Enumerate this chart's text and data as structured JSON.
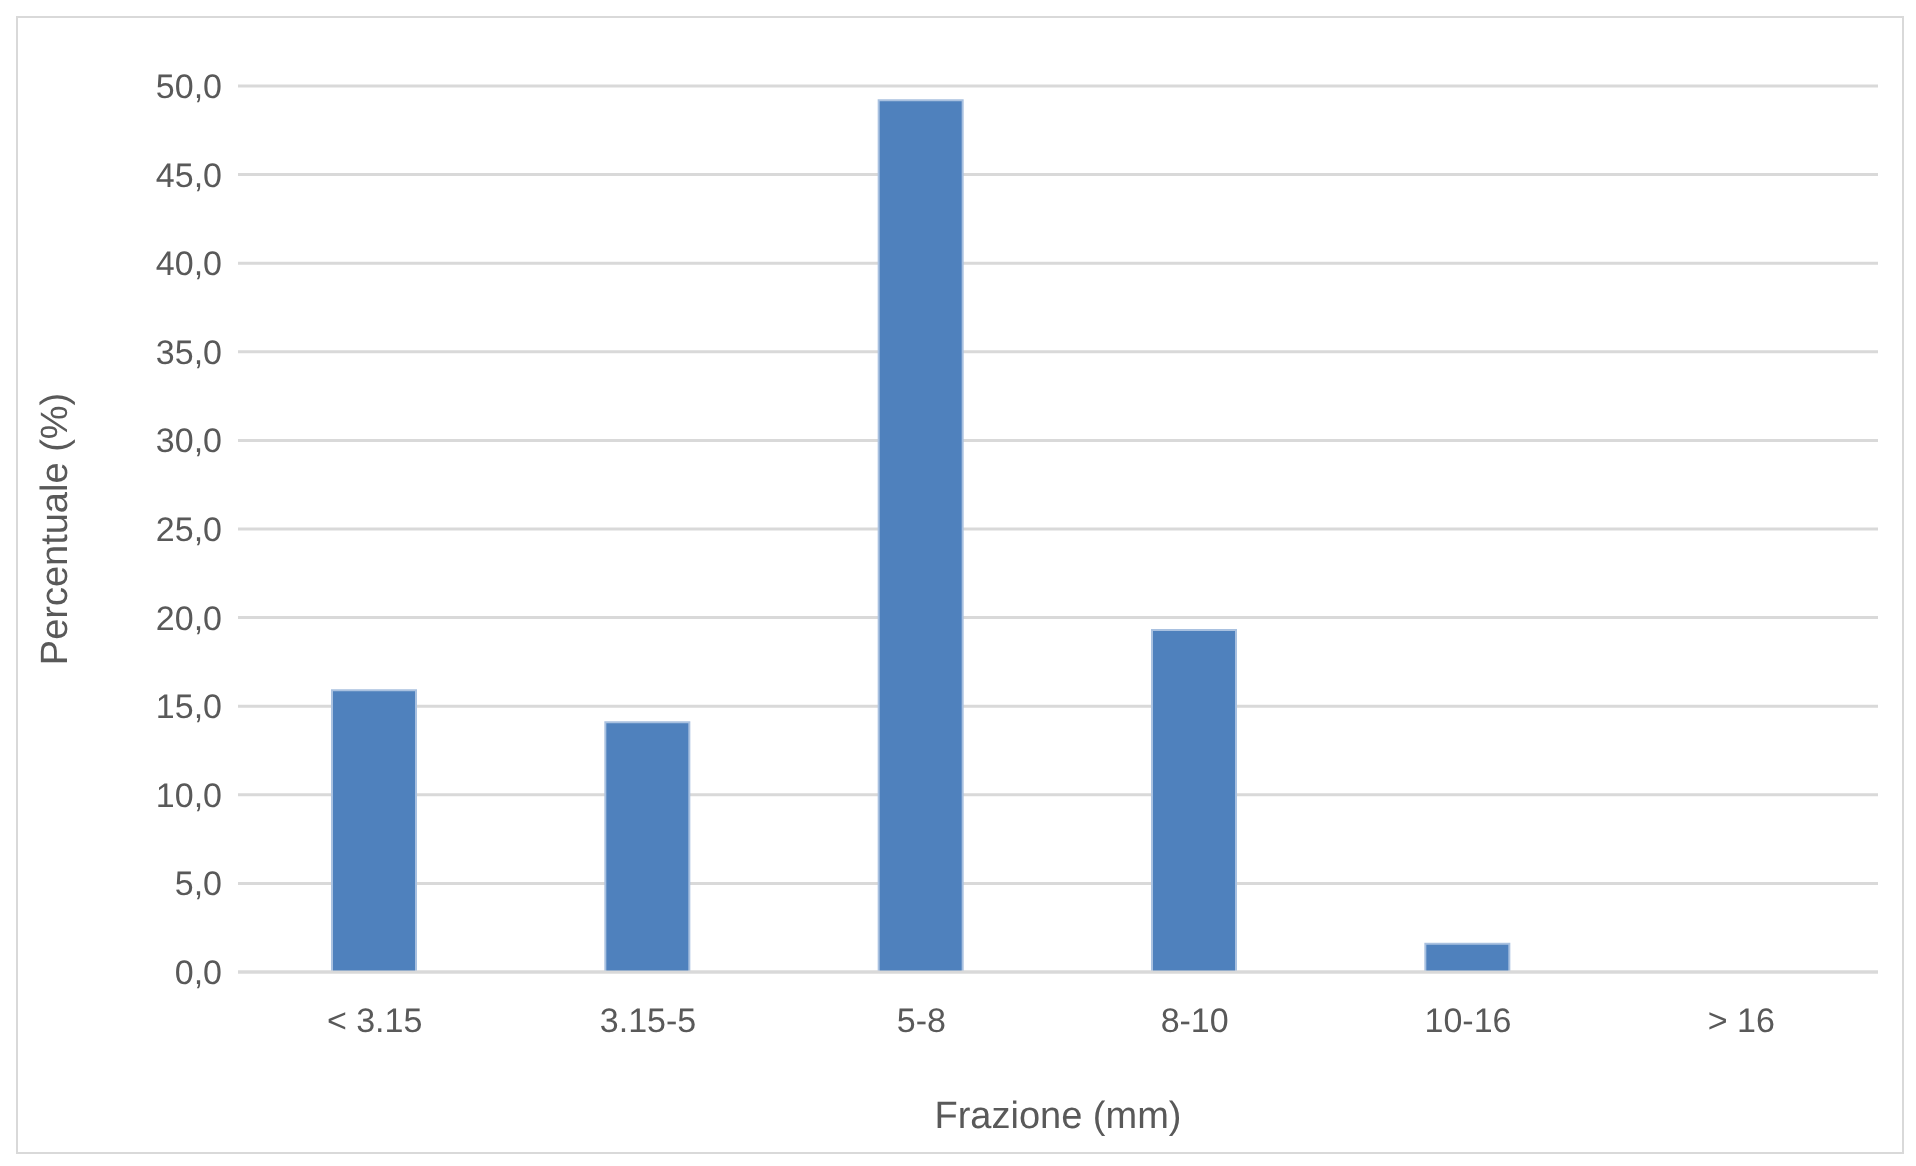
{
  "chart_data": {
    "type": "bar",
    "xlabel": "Frazione (mm)",
    "ylabel": "Percentuale (%)",
    "categories": [
      "< 3.15",
      "3.15-5",
      "5-8",
      "8-10",
      "10-16",
      "> 16"
    ],
    "values": [
      15.9,
      14.1,
      49.2,
      19.3,
      1.6,
      0
    ],
    "color": "#4f81bd",
    "ylim": [
      0,
      50
    ],
    "yticks": [
      {
        "value": 0,
        "label": "0,0"
      },
      {
        "value": 5,
        "label": "5,0"
      },
      {
        "value": 10,
        "label": "10,0"
      },
      {
        "value": 15,
        "label": "15,0"
      },
      {
        "value": 20,
        "label": "20,0"
      },
      {
        "value": 25,
        "label": "25,0"
      },
      {
        "value": 30,
        "label": "30,0"
      },
      {
        "value": 35,
        "label": "35,0"
      },
      {
        "value": 40,
        "label": "40,0"
      },
      {
        "value": 45,
        "label": "45,0"
      },
      {
        "value": 50,
        "label": "50,0"
      }
    ],
    "grid": "y",
    "legend": false
  }
}
